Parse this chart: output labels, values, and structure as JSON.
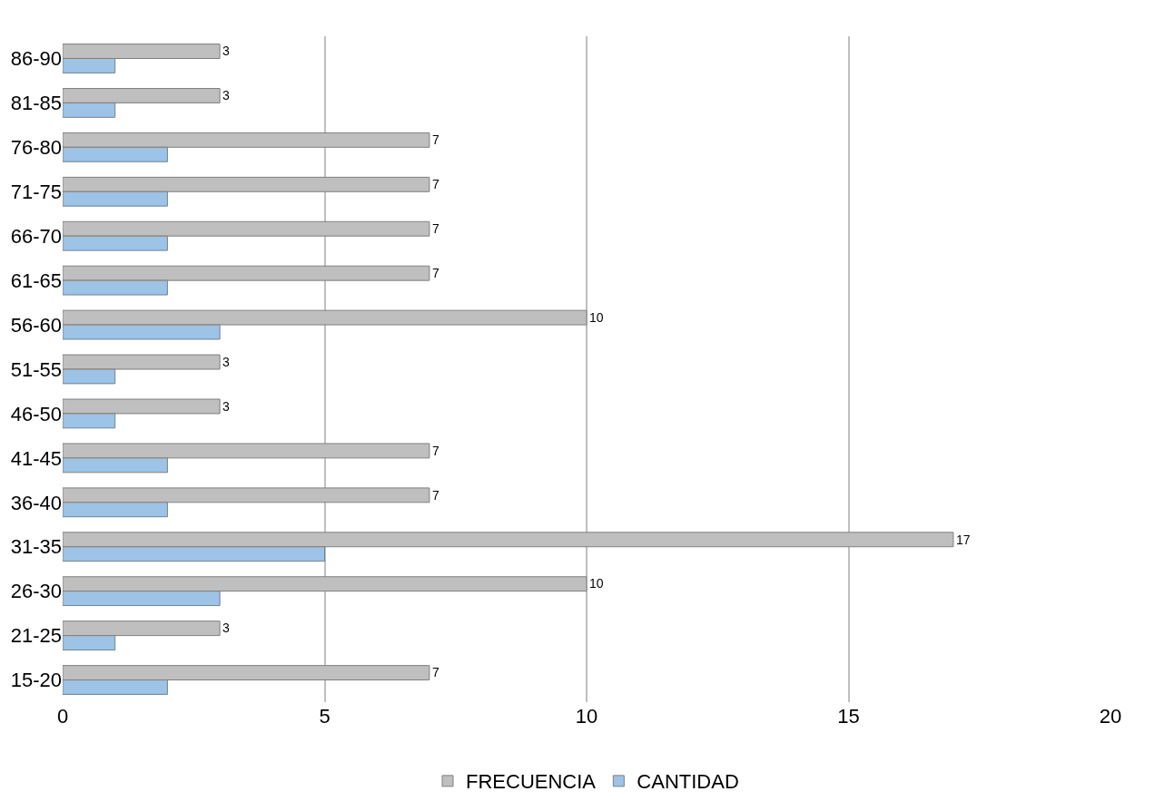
{
  "chart_data": {
    "type": "bar",
    "orientation": "horizontal",
    "categories": [
      "86-90",
      "81-85",
      "76-80",
      "71-75",
      "66-70",
      "61-65",
      "56-60",
      "51-55",
      "46-50",
      "41-45",
      "36-40",
      "31-35",
      "26-30",
      "21-25",
      "15-20"
    ],
    "series": [
      {
        "name": "FRECUENCIA",
        "color": "#bfbfbf",
        "values": [
          3,
          3,
          7,
          7,
          7,
          7,
          10,
          3,
          3,
          7,
          7,
          17,
          10,
          3,
          7
        ],
        "value_labels": [
          "3",
          "3",
          "7",
          "7",
          "7",
          "7",
          "10",
          "3",
          "3",
          "7",
          "7",
          "17",
          "10",
          "3",
          "7"
        ]
      },
      {
        "name": "CANTIDAD",
        "color": "#9dc3e6",
        "values": [
          1,
          1,
          2,
          2,
          2,
          2,
          3,
          1,
          1,
          2,
          2,
          5,
          3,
          1,
          2
        ]
      }
    ],
    "xlim": [
      0,
      20
    ],
    "xticks": [
      0,
      5,
      10,
      15,
      20
    ],
    "grid": "x",
    "legend": "bottom"
  }
}
